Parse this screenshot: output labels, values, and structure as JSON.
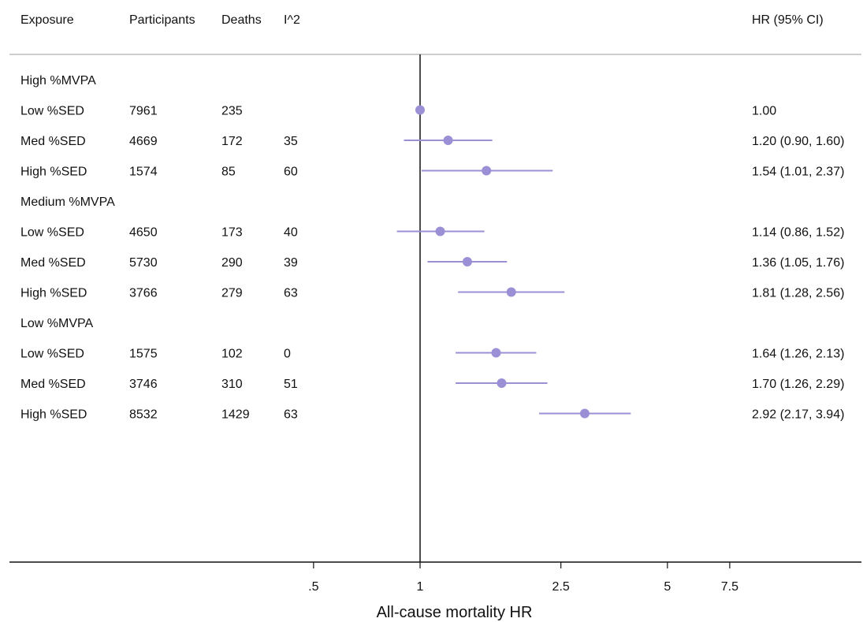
{
  "columns": {
    "exposure": "Exposure",
    "participants": "Participants",
    "deaths": "Deaths",
    "i2": "I^2",
    "hr": "HR (95% CI)"
  },
  "accent_color": "#9b8fd6",
  "chart_data": {
    "type": "forest",
    "xlabel": "All-cause mortality HR",
    "x_scale": "log",
    "x_ticks": [
      ".5",
      "1",
      "2.5",
      "5",
      "7.5"
    ],
    "x_tick_values": [
      0.5,
      1,
      2.5,
      5,
      7.5
    ],
    "reference_line": 1,
    "groups": [
      {
        "label": "High %MVPA",
        "rows": [
          {
            "label": "Low %SED",
            "participants": "7961",
            "deaths": "235",
            "i2": "",
            "hr": 1.0,
            "lo": 1.0,
            "hi": 1.0,
            "text": "1.00"
          },
          {
            "label": "Med %SED",
            "participants": "4669",
            "deaths": "172",
            "i2": "35",
            "hr": 1.2,
            "lo": 0.9,
            "hi": 1.6,
            "text": "1.20 (0.90, 1.60)"
          },
          {
            "label": "High %SED",
            "participants": "1574",
            "deaths": "85",
            "i2": "60",
            "hr": 1.54,
            "lo": 1.01,
            "hi": 2.37,
            "text": "1.54 (1.01, 2.37)"
          }
        ]
      },
      {
        "label": "Medium %MVPA",
        "rows": [
          {
            "label": "Low %SED",
            "participants": "4650",
            "deaths": "173",
            "i2": "40",
            "hr": 1.14,
            "lo": 0.86,
            "hi": 1.52,
            "text": "1.14 (0.86, 1.52)"
          },
          {
            "label": "Med %SED",
            "participants": "5730",
            "deaths": "290",
            "i2": "39",
            "hr": 1.36,
            "lo": 1.05,
            "hi": 1.76,
            "text": "1.36 (1.05, 1.76)"
          },
          {
            "label": "High %SED",
            "participants": "3766",
            "deaths": "279",
            "i2": "63",
            "hr": 1.81,
            "lo": 1.28,
            "hi": 2.56,
            "text": "1.81 (1.28, 2.56)"
          }
        ]
      },
      {
        "label": "Low %MVPA",
        "rows": [
          {
            "label": "Low %SED",
            "participants": "1575",
            "deaths": "102",
            "i2": "0",
            "hr": 1.64,
            "lo": 1.26,
            "hi": 2.13,
            "text": "1.64 (1.26, 2.13)"
          },
          {
            "label": "Med %SED",
            "participants": "3746",
            "deaths": "310",
            "i2": "51",
            "hr": 1.7,
            "lo": 1.26,
            "hi": 2.29,
            "text": "1.70 (1.26, 2.29)"
          },
          {
            "label": "High %SED",
            "participants": "8532",
            "deaths": "1429",
            "i2": "63",
            "hr": 2.92,
            "lo": 2.17,
            "hi": 3.94,
            "text": "2.92 (2.17, 3.94)"
          }
        ]
      }
    ]
  }
}
